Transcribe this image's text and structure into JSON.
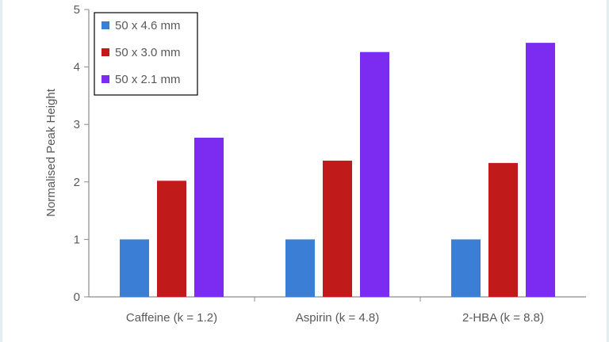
{
  "chart_data": {
    "type": "bar",
    "title": "",
    "xlabel": "",
    "ylabel": "Normalised Peak Height",
    "categories": [
      "Caffeine (k = 1.2)",
      "Aspirin  (k = 4.8)",
      "2-HBA (k = 8.8)"
    ],
    "series": [
      {
        "name": "50 x 4.6 mm",
        "color": "#3a7fd5",
        "values": [
          1.0,
          1.0,
          1.0
        ]
      },
      {
        "name": "50 x 3.0 mm",
        "color": "#c01a1a",
        "values": [
          2.02,
          2.37,
          2.33
        ]
      },
      {
        "name": "50 x 2.1 mm",
        "color": "#7b2cf0",
        "values": [
          2.77,
          4.26,
          4.42
        ]
      }
    ],
    "ylim": [
      0,
      5
    ],
    "yticks": [
      0,
      1,
      2,
      3,
      4,
      5
    ],
    "grid": false,
    "legend_position": "top-left",
    "legend_border": "#000000"
  }
}
